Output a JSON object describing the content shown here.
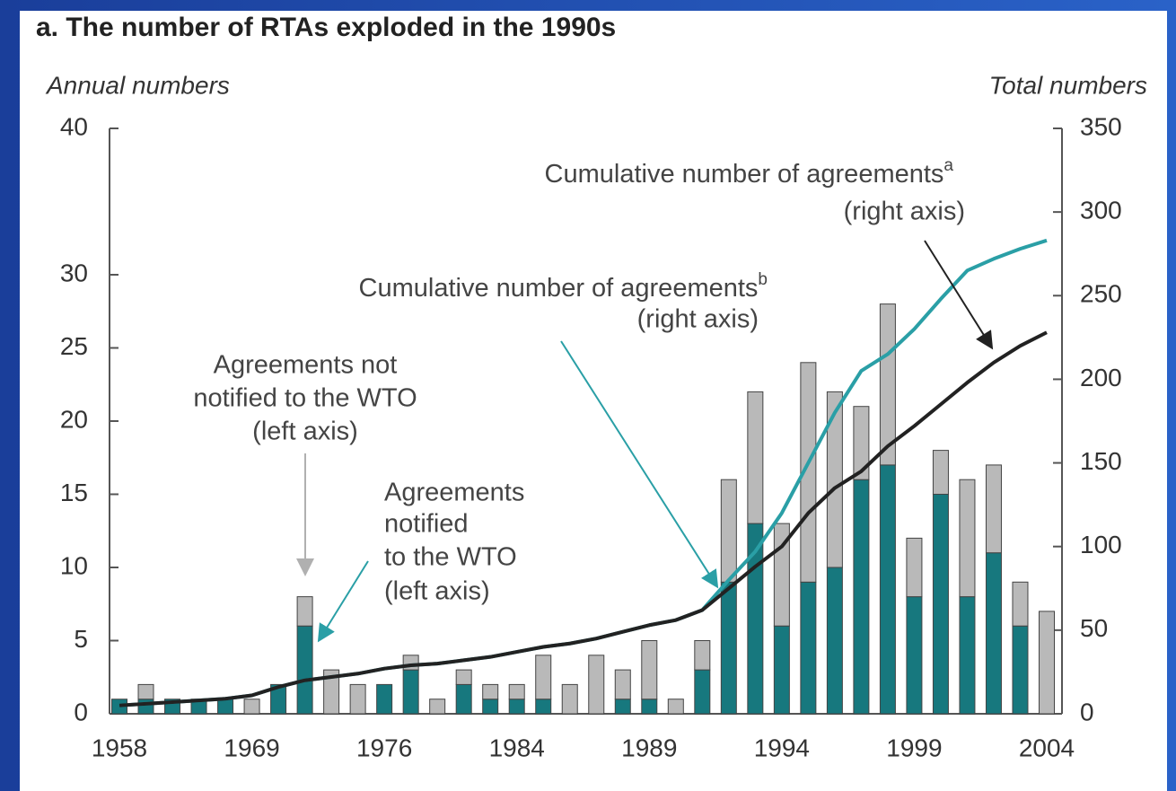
{
  "chart_data": {
    "type": "combo",
    "title": "a. The number of RTAs exploded in the 1990s",
    "y_label": "Annual numbers",
    "y2_label": "Total numbers",
    "categories": [
      "1958",
      null,
      null,
      null,
      null,
      "1969",
      null,
      null,
      null,
      null,
      "1976",
      null,
      null,
      null,
      null,
      "1984",
      null,
      null,
      null,
      null,
      "1989",
      null,
      null,
      null,
      null,
      "1994",
      null,
      null,
      null,
      null,
      "1999",
      null,
      null,
      null,
      null,
      "2004"
    ],
    "ylim": [
      0,
      40
    ],
    "yticks": [
      0,
      5,
      10,
      15,
      20,
      25,
      30,
      40
    ],
    "y2lim": [
      0,
      350
    ],
    "y2ticks": [
      0,
      50,
      100,
      150,
      200,
      250,
      300,
      350
    ],
    "series": [
      {
        "type": "bar",
        "stack": true,
        "color": "#17787e",
        "values": [
          1,
          1,
          1,
          1,
          1,
          0,
          2,
          6,
          0,
          0,
          2,
          3,
          0,
          2,
          1,
          1,
          1,
          0,
          0,
          1,
          1,
          0,
          3,
          9,
          13,
          6,
          9,
          10,
          16,
          17,
          8,
          15,
          8,
          11,
          6,
          0
        ]
      },
      {
        "type": "bar",
        "stack": true,
        "color": "#b9b9b9",
        "values": [
          0,
          1,
          0,
          0,
          0,
          1,
          0,
          2,
          3,
          2,
          0,
          1,
          1,
          1,
          1,
          1,
          3,
          2,
          4,
          2,
          4,
          1,
          2,
          7,
          9,
          7,
          15,
          12,
          5,
          11,
          4,
          3,
          8,
          6,
          3,
          7
        ]
      },
      {
        "type": "line",
        "axis": "y2",
        "color": "#2a9fa6",
        "values": [
          5,
          6,
          7,
          8,
          9,
          11,
          16,
          20,
          22,
          24,
          27,
          29,
          30,
          32,
          34,
          37,
          40,
          42,
          45,
          49,
          53,
          56,
          62,
          80,
          97,
          120,
          150,
          180,
          205,
          215,
          230,
          248,
          265,
          272,
          278,
          283
        ]
      },
      {
        "type": "line",
        "axis": "y2",
        "color": "#222222",
        "values": [
          5,
          6,
          7,
          8,
          9,
          11,
          16,
          20,
          22,
          24,
          27,
          29,
          30,
          32,
          34,
          37,
          40,
          42,
          45,
          49,
          53,
          56,
          62,
          75,
          88,
          100,
          120,
          135,
          145,
          160,
          172,
          185,
          198,
          210,
          220,
          228
        ]
      }
    ],
    "annotations": [
      {
        "lines": [
          "Cumulative number of agreements",
          "(right axis)"
        ],
        "sup": "a"
      },
      {
        "lines": [
          "Cumulative number of agreements",
          "(right axis)"
        ],
        "sup": "b"
      },
      {
        "lines": [
          "Agreements not",
          "notified to the WTO",
          "(left axis)"
        ]
      },
      {
        "lines": [
          "Agreements",
          "notified",
          "to the WTO",
          "(left axis)"
        ]
      }
    ]
  }
}
